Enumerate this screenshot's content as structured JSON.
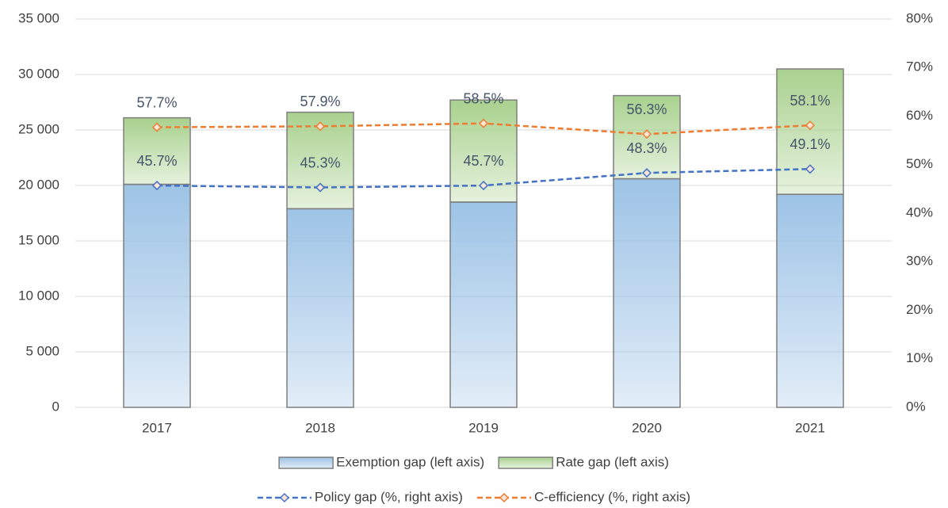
{
  "chart_data": {
    "type": "bar",
    "categories": [
      "2017",
      "2018",
      "2019",
      "2020",
      "2021"
    ],
    "series": [
      {
        "name": "Exemption gap (left axis)",
        "type": "bar",
        "color": "#9dc3e6",
        "values": [
          20100,
          17900,
          18500,
          20600,
          19200
        ]
      },
      {
        "name": "Rate gap (left axis)",
        "type": "bar",
        "color": "#a9d18e",
        "values": [
          6000,
          8700,
          9200,
          7500,
          11300
        ]
      },
      {
        "name": "Policy gap (%, right axis)",
        "type": "line",
        "axis": "y2",
        "color": "#4472c4",
        "values": [
          45.7,
          45.3,
          45.7,
          48.3,
          49.1
        ],
        "value_labels": [
          "45.7%",
          "45.3%",
          "45.7%",
          "48.3%",
          "49.1%"
        ]
      },
      {
        "name": "C-efficiency (%, right axis)",
        "type": "line",
        "axis": "y2",
        "color": "#ed7d31",
        "values": [
          57.7,
          57.9,
          58.5,
          56.3,
          58.1
        ],
        "value_labels": [
          "57.7%",
          "57.9%",
          "58.5%",
          "56.3%",
          "58.1%"
        ]
      }
    ],
    "ylim": [
      0,
      35000
    ],
    "yticks": [
      0,
      {
        "value": 5000,
        "label": "5 000"
      },
      {
        "value": 10000,
        "label": "10 000"
      },
      {
        "value": 15000,
        "label": "15 000"
      },
      {
        "value": 20000,
        "label": "20 000"
      },
      {
        "value": 25000,
        "label": "25 000"
      },
      {
        "value": 30000,
        "label": "30 000"
      },
      {
        "value": 35000,
        "label": "35 000"
      }
    ],
    "y2lim": [
      0,
      80
    ],
    "y2ticks": [
      {
        "value": 0,
        "label": "0%"
      },
      {
        "value": 10,
        "label": "10%"
      },
      {
        "value": 20,
        "label": "20%"
      },
      {
        "value": 30,
        "label": "30%"
      },
      {
        "value": 40,
        "label": "40%"
      },
      {
        "value": 50,
        "label": "50%"
      },
      {
        "value": 60,
        "label": "60%"
      },
      {
        "value": 70,
        "label": "70%"
      },
      {
        "value": 80,
        "label": "80%"
      }
    ],
    "grid": true
  }
}
